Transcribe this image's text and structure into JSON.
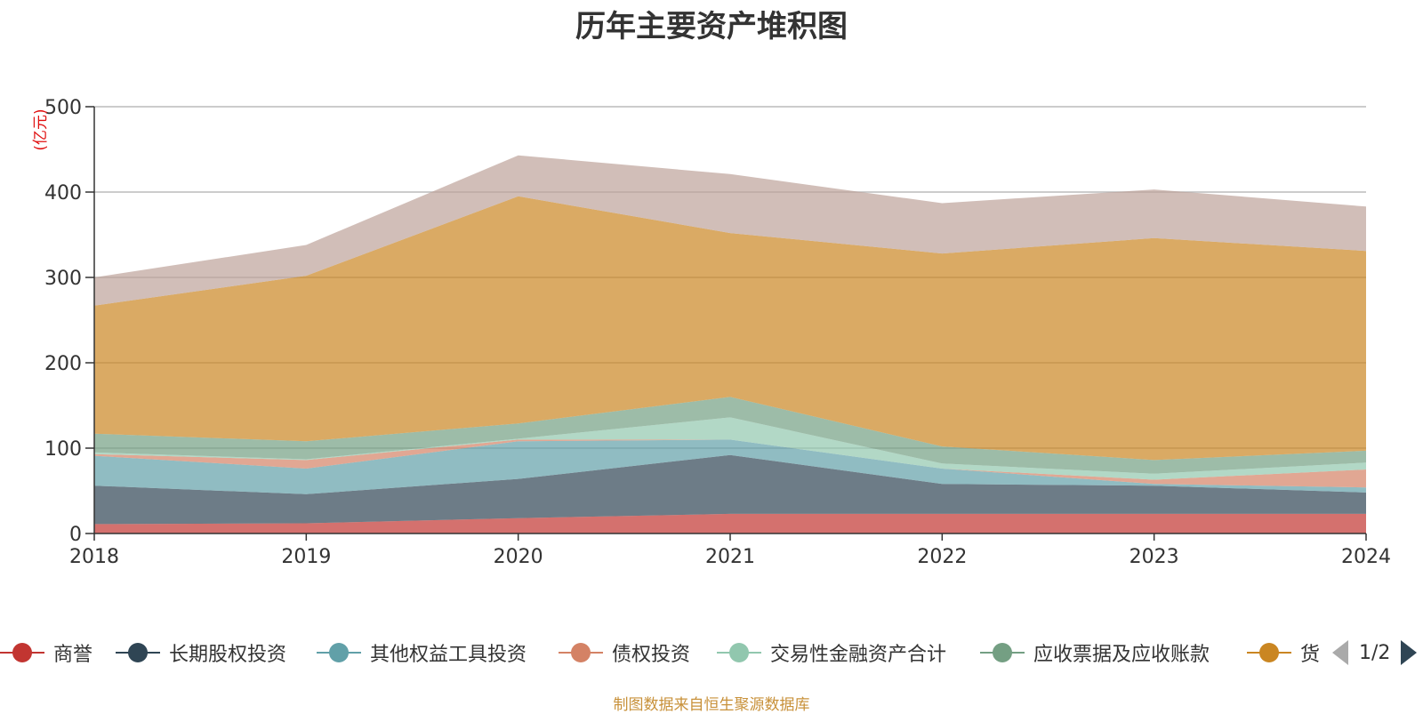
{
  "title": "历年主要资产堆积图",
  "source": "制图数据来自恒生聚源数据库",
  "legend_pager": "1/2",
  "chart_data": {
    "type": "area",
    "stacked": true,
    "title": "历年主要资产堆积图",
    "ylabel": "(亿元)",
    "ylim": [
      0,
      500
    ],
    "yticks": [
      0,
      100,
      200,
      300,
      400,
      500
    ],
    "grid": true,
    "legend_position": "bottom",
    "categories": [
      "2018",
      "2019",
      "2020",
      "2021",
      "2022",
      "2023",
      "2024"
    ],
    "series": [
      {
        "name": "商誉",
        "color": "#c23531",
        "values": [
          11,
          12,
          18,
          23,
          23,
          23,
          23
        ]
      },
      {
        "name": "长期股权投资",
        "color": "#2f4554",
        "values": [
          45,
          34,
          46,
          69,
          35,
          33,
          25
        ]
      },
      {
        "name": "其他权益工具投资",
        "color": "#61a0a8",
        "values": [
          35,
          30,
          44,
          18,
          18,
          2,
          6
        ]
      },
      {
        "name": "债权投资",
        "color": "#d48265",
        "values": [
          2,
          10,
          2,
          0,
          0,
          5,
          21
        ]
      },
      {
        "name": "交易性金融资产合计",
        "color": "#91c7ae",
        "values": [
          2,
          1,
          1,
          26,
          6,
          7,
          8
        ]
      },
      {
        "name": "应收票据及应收账款",
        "color": "#749f83",
        "values": [
          22,
          21,
          18,
          24,
          20,
          16,
          14
        ]
      },
      {
        "name": "货",
        "color": "#ca8622",
        "values": [
          150,
          194,
          266,
          192,
          226,
          260,
          234
        ]
      },
      {
        "name": "",
        "color": "#bda29a",
        "values": [
          33,
          36,
          48,
          69,
          59,
          57,
          52
        ]
      }
    ]
  }
}
